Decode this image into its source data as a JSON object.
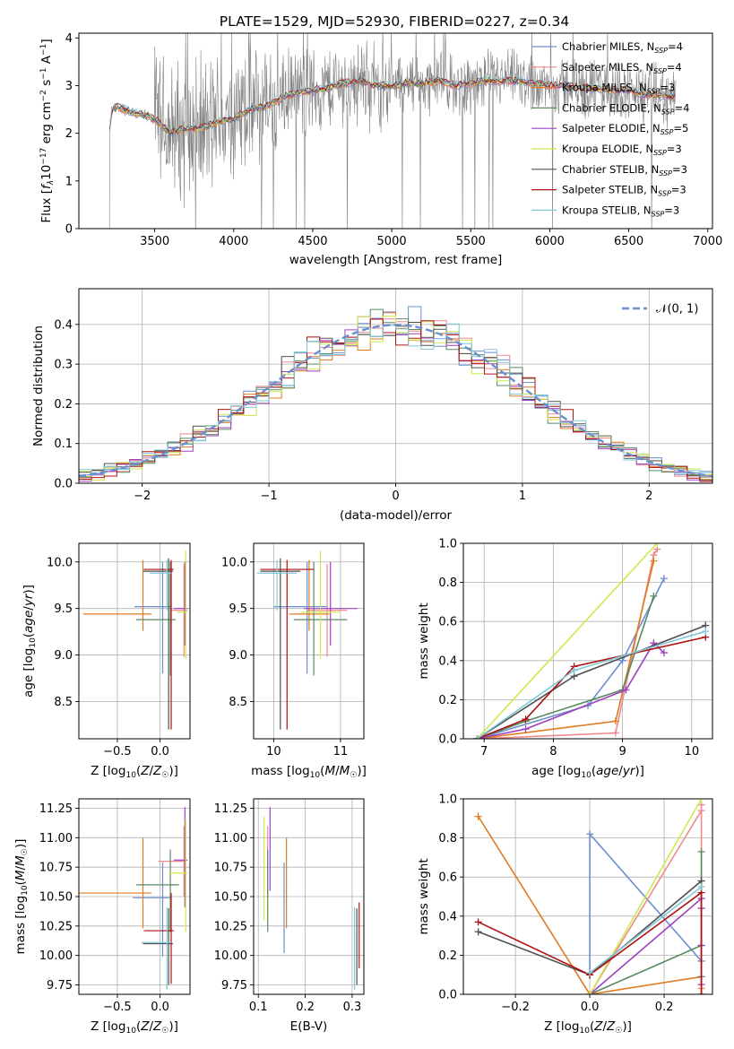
{
  "figure": {
    "title": "PLATE=1529, MJD=52930, FIBERID=0227, z=0.34"
  },
  "colors": {
    "data_spectrum": "#808080",
    "grid": "#b0b0b0",
    "gaussian": "#6a8fd0"
  },
  "model_names": [
    "Chabrier MILES",
    "Salpeter MILES",
    "Kroupa MILES",
    "Chabrier ELODIE",
    "Salpeter ELODIE",
    "Kroupa ELODIE",
    "Chabrier STELIB",
    "Salpeter STELIB",
    "Kroupa STELIB"
  ],
  "model_colors": [
    "#6a8fd0",
    "#f08a8a",
    "#e07b20",
    "#5a8a60",
    "#a040c0",
    "#d0e84a",
    "#505050",
    "#b01010",
    "#80c8d8"
  ],
  "legend": [
    {
      "label": "Chabrier MILES",
      "n": "4"
    },
    {
      "label": "Salpeter MILES",
      "n": "4"
    },
    {
      "label": "Kroupa MILES",
      "n": "3"
    },
    {
      "label": "Chabrier ELODIE",
      "n": "4"
    },
    {
      "label": "Salpeter ELODIE",
      "n": "5"
    },
    {
      "label": "Kroupa ELODIE",
      "n": "3"
    },
    {
      "label": "Chabrier STELIB",
      "n": "3"
    },
    {
      "label": "Salpeter STELIB",
      "n": "3"
    },
    {
      "label": "Kroupa STELIB",
      "n": "3"
    }
  ],
  "chart_data": [
    {
      "id": "spectrum",
      "type": "line",
      "xlabel": "wavelength [Angstrom, rest frame]",
      "ylabel_parts": [
        "Flux [",
        "f",
        "λ",
        "10",
        "−17",
        " erg cm",
        "−2",
        " s",
        "−1",
        " A",
        "−1",
        "]"
      ],
      "xlim": [
        3020,
        7030
      ],
      "ylim": [
        0,
        4.1
      ],
      "xticks": [
        3500,
        4000,
        4500,
        5000,
        5500,
        6000,
        6500,
        7000
      ],
      "yticks": [
        0,
        1,
        2,
        3,
        4
      ],
      "continuum_x": [
        3210,
        3230,
        3260,
        3350,
        3450,
        3500,
        3600,
        3700,
        3800,
        3900,
        4000,
        4100,
        4200,
        4300,
        4400,
        4500,
        4600,
        4700,
        4800,
        4900,
        5000,
        5100,
        5200,
        5300,
        5400,
        5500,
        5600,
        5700,
        5800,
        5900,
        6000,
        6100,
        6200,
        6300,
        6400,
        6500,
        6600,
        6700,
        6800
      ],
      "continuum_y": [
        2.0,
        2.5,
        2.55,
        2.45,
        2.35,
        2.3,
        2.0,
        2.1,
        2.1,
        2.25,
        2.3,
        2.5,
        2.55,
        2.75,
        2.85,
        2.9,
        2.95,
        3.05,
        3.1,
        3.0,
        3.0,
        3.05,
        3.05,
        3.1,
        3.0,
        3.05,
        3.1,
        3.1,
        3.1,
        3.05,
        3.0,
        3.0,
        2.95,
        2.95,
        2.9,
        2.9,
        2.8,
        2.8,
        2.75
      ],
      "data_x_range": [
        3210,
        6800
      ],
      "legend_unit_prefix": "N",
      "legend_unit_sub": "SSP"
    },
    {
      "id": "residuals",
      "type": "line",
      "xlabel": "(data-model)/error",
      "ylabel": "Normed distribution",
      "xlim": [
        -2.5,
        2.5
      ],
      "ylim": [
        0,
        0.49
      ],
      "xticks": [
        -2,
        -1,
        0,
        1,
        2
      ],
      "xtick_labels": [
        "−2",
        "−1",
        "0",
        "1",
        "2"
      ],
      "yticks": [
        0.0,
        0.1,
        0.2,
        0.3,
        0.4
      ],
      "ytick_labels": [
        "0.0",
        "0.1",
        "0.2",
        "0.3",
        "0.4"
      ],
      "bin_width": 0.1,
      "gaussian_label": "𝒩(0, 1)"
    },
    {
      "id": "age-vs-Z",
      "type": "scatter",
      "xlabel": "Z [log10(Z/Z☉)]",
      "ylabel": "age  [log10(age/yr)]",
      "xlim": [
        -0.95,
        0.35
      ],
      "ylim": [
        8.1,
        10.2
      ],
      "xticks": [
        -0.5,
        0.0
      ],
      "xtick_labels": [
        "−0.5",
        "0.0"
      ],
      "yticks": [
        8.5,
        9.0,
        9.5,
        10.0
      ],
      "ytick_labels": [
        "8.5",
        "9.0",
        "9.5",
        "10.0"
      ],
      "bars": [
        {
          "m": 0,
          "x": 0.03,
          "xe": [
            0.33,
            0.1
          ],
          "y": 9.52,
          "ye": [
            0.72,
            0.48
          ]
        },
        {
          "m": 1,
          "x": 0.28,
          "xe": [
            0.15,
            0.04
          ],
          "y": 9.48,
          "ye": [
            0.5,
            0.5
          ]
        },
        {
          "m": 2,
          "x": -0.2,
          "xe": [
            0.7,
            0.1
          ],
          "y": 9.44,
          "ye": [
            0.18,
            0.58
          ]
        },
        {
          "m": 3,
          "x": 0.12,
          "xe": [
            0.4,
            0.06
          ],
          "y": 9.38,
          "ye": [
            0.6,
            0.62
          ]
        },
        {
          "m": 4,
          "x": 0.29,
          "xe": [
            0.13,
            0.03
          ],
          "y": 9.5,
          "ye": [
            0.4,
            0.5
          ]
        },
        {
          "m": 5,
          "x": 0.3,
          "xe": [
            0.1,
            0.02
          ],
          "y": 9.46,
          "ye": [
            0.5,
            0.66
          ]
        },
        {
          "m": 6,
          "x": 0.1,
          "xe": [
            0.3,
            0.05
          ],
          "y": 9.9,
          "ye": [
            1.7,
            0.14
          ]
        },
        {
          "m": 7,
          "x": 0.13,
          "xe": [
            0.32,
            0.03
          ],
          "y": 9.92,
          "ye": [
            1.72,
            0.1
          ]
        },
        {
          "m": 8,
          "x": 0.08,
          "xe": [
            0.2,
            0.05
          ],
          "y": 9.88,
          "ye": [
            0.4,
            0.14
          ]
        }
      ]
    },
    {
      "id": "age-vs-mass",
      "type": "scatter",
      "xlabel": "mass [log10(M/M☉)]",
      "xlim": [
        9.7,
        11.35
      ],
      "ylim": [
        8.1,
        10.2
      ],
      "xticks": [
        10,
        11
      ],
      "xtick_labels": [
        "10",
        "11"
      ],
      "yticks": [
        8.5,
        9.0,
        9.5,
        10.0
      ],
      "ytick_labels": [
        "8.5",
        "9.0",
        "9.5",
        "10.0"
      ],
      "bars": [
        {
          "m": 0,
          "x": 10.5,
          "xe": [
            0.5,
            0.3
          ],
          "y": 9.52,
          "ye": [
            0.72,
            0.48
          ]
        },
        {
          "m": 1,
          "x": 10.8,
          "xe": [
            0.3,
            0.3
          ],
          "y": 9.48,
          "ye": [
            0.5,
            0.5
          ]
        },
        {
          "m": 2,
          "x": 10.53,
          "xe": [
            0.3,
            0.3
          ],
          "y": 9.44,
          "ye": [
            0.18,
            0.58
          ]
        },
        {
          "m": 3,
          "x": 10.6,
          "xe": [
            0.3,
            0.5
          ],
          "y": 9.38,
          "ye": [
            0.6,
            0.62
          ]
        },
        {
          "m": 4,
          "x": 10.85,
          "xe": [
            0.4,
            0.4
          ],
          "y": 9.5,
          "ye": [
            0.4,
            0.5
          ]
        },
        {
          "m": 5,
          "x": 10.7,
          "xe": [
            0.3,
            0.3
          ],
          "y": 9.46,
          "ye": [
            0.5,
            0.66
          ]
        },
        {
          "m": 6,
          "x": 10.1,
          "xe": [
            0.3,
            0.3
          ],
          "y": 9.9,
          "ye": [
            1.7,
            0.14
          ]
        },
        {
          "m": 7,
          "x": 10.2,
          "xe": [
            0.4,
            0.4
          ],
          "y": 9.92,
          "ye": [
            1.72,
            0.1
          ]
        },
        {
          "m": 8,
          "x": 10.05,
          "xe": [
            0.3,
            0.3
          ],
          "y": 9.88,
          "ye": [
            0.4,
            0.14
          ]
        }
      ]
    },
    {
      "id": "mass-weight-vs-age",
      "type": "line",
      "xlabel": "age  [log10(age/yr)]",
      "ylabel": "mass weight",
      "xlim": [
        6.7,
        10.3
      ],
      "ylim": [
        0,
        1
      ],
      "xticks": [
        7,
        8,
        9,
        10
      ],
      "xtick_labels": [
        "7",
        "8",
        "9",
        "10"
      ],
      "yticks": [
        0.0,
        0.2,
        0.4,
        0.6,
        0.8,
        1.0
      ],
      "ytick_labels": [
        "0.0",
        "0.2",
        "0.4",
        "0.6",
        "0.8",
        "1.0"
      ],
      "series": [
        {
          "m": 0,
          "x": [
            6.9,
            8.5,
            9.0,
            9.6
          ],
          "y": [
            0.0,
            0.17,
            0.4,
            0.82
          ]
        },
        {
          "m": 1,
          "x": [
            6.9,
            8.9,
            9.45,
            9.5
          ],
          "y": [
            0.0,
            0.03,
            0.94,
            0.97
          ]
        },
        {
          "m": 2,
          "x": [
            6.9,
            8.9,
            9.45
          ],
          "y": [
            0.0,
            0.09,
            0.91
          ]
        },
        {
          "m": 3,
          "x": [
            6.9,
            7.6,
            9.0,
            9.45
          ],
          "y": [
            0.0,
            0.09,
            0.25,
            0.73
          ]
        },
        {
          "m": 4,
          "x": [
            6.9,
            7.6,
            9.05,
            9.45,
            9.6
          ],
          "y": [
            0.0,
            0.05,
            0.25,
            0.49,
            0.44
          ]
        },
        {
          "m": 5,
          "x": [
            6.9,
            9.5
          ],
          "y": [
            0.0,
            1.0
          ]
        },
        {
          "m": 6,
          "x": [
            6.9,
            8.3,
            10.2
          ],
          "y": [
            0.0,
            0.32,
            0.58
          ]
        },
        {
          "m": 7,
          "x": [
            6.9,
            7.6,
            8.3,
            10.2
          ],
          "y": [
            0.0,
            0.1,
            0.37,
            0.52
          ]
        },
        {
          "m": 8,
          "x": [
            6.9,
            8.3,
            10.2
          ],
          "y": [
            0.0,
            0.35,
            0.55
          ]
        }
      ]
    },
    {
      "id": "mass-vs-Z",
      "type": "scatter",
      "xlabel": "Z [log10(Z/Z☉)]",
      "ylabel": "mass [log10(M/M☉)]",
      "xlim": [
        -0.95,
        0.35
      ],
      "ylim": [
        9.67,
        11.33
      ],
      "xticks": [
        -0.5,
        0.0
      ],
      "xtick_labels": [
        "−0.5",
        "0.0"
      ],
      "yticks": [
        9.75,
        10.0,
        10.25,
        10.5,
        10.75,
        11.0,
        11.25
      ],
      "ytick_labels": [
        "9.75",
        "10.00",
        "10.25",
        "10.50",
        "10.75",
        "11.00",
        "11.25"
      ],
      "bars": [
        {
          "m": 0,
          "x": 0.03,
          "xe": [
            0.35,
            0.1
          ],
          "y": 10.49,
          "ye": [
            0.5,
            0.3
          ]
        },
        {
          "m": 1,
          "x": 0.28,
          "xe": [
            0.3,
            0.03
          ],
          "y": 10.8,
          "ye": [
            0.3,
            0.3
          ]
        },
        {
          "m": 2,
          "x": -0.2,
          "xe": [
            0.75,
            0.1
          ],
          "y": 10.53,
          "ye": [
            0.3,
            0.47
          ]
        },
        {
          "m": 3,
          "x": 0.12,
          "xe": [
            0.4,
            0.1
          ],
          "y": 10.6,
          "ye": [
            0.4,
            0.3
          ]
        },
        {
          "m": 4,
          "x": 0.29,
          "xe": [
            0.13,
            0.03
          ],
          "y": 10.81,
          "ye": [
            0.4,
            0.45
          ]
        },
        {
          "m": 5,
          "x": 0.3,
          "xe": [
            0.2,
            0.02
          ],
          "y": 10.7,
          "ye": [
            0.5,
            0.46
          ]
        },
        {
          "m": 6,
          "x": 0.1,
          "xe": [
            0.3,
            0.05
          ],
          "y": 10.1,
          "ye": [
            0.35,
            0.3
          ]
        },
        {
          "m": 7,
          "x": 0.13,
          "xe": [
            0.32,
            0.03
          ],
          "y": 10.21,
          "ye": [
            0.45,
            0.32
          ]
        },
        {
          "m": 8,
          "x": 0.08,
          "xe": [
            0.3,
            0.05
          ],
          "y": 10.11,
          "ye": [
            0.4,
            0.3
          ]
        }
      ]
    },
    {
      "id": "mass-vs-EBV",
      "type": "scatter",
      "xlabel": "E(B-V)",
      "xlim": [
        0.09,
        0.325
      ],
      "ylim": [
        9.67,
        11.33
      ],
      "xticks": [
        0.1,
        0.2,
        0.3
      ],
      "xtick_labels": [
        "0.1",
        "0.2",
        "0.3"
      ],
      "yticks": [
        9.75,
        10.0,
        10.25,
        10.5,
        10.75,
        11.0,
        11.25
      ],
      "ytick_labels": [
        "9.75",
        "10.00",
        "10.25",
        "10.50",
        "10.75",
        "11.00",
        "11.25"
      ],
      "bars": [
        {
          "m": 0,
          "x": 0.155,
          "xe": [
            0,
            0
          ],
          "y": 10.49,
          "ye": [
            0.47,
            0.3
          ]
        },
        {
          "m": 1,
          "x": 0.12,
          "xe": [
            0,
            0
          ],
          "y": 10.8,
          "ye": [
            0.3,
            0.3
          ]
        },
        {
          "m": 2,
          "x": 0.16,
          "xe": [
            0,
            0
          ],
          "y": 10.53,
          "ye": [
            0.3,
            0.47
          ]
        },
        {
          "m": 3,
          "x": 0.12,
          "xe": [
            0,
            0
          ],
          "y": 10.6,
          "ye": [
            0.4,
            0.3
          ]
        },
        {
          "m": 4,
          "x": 0.125,
          "xe": [
            0,
            0
          ],
          "y": 10.81,
          "ye": [
            0.26,
            0.45
          ]
        },
        {
          "m": 5,
          "x": 0.112,
          "xe": [
            0,
            0
          ],
          "y": 10.7,
          "ye": [
            0.4,
            0.48
          ]
        },
        {
          "m": 6,
          "x": 0.31,
          "xe": [
            0,
            0
          ],
          "y": 10.1,
          "ye": [
            0.35,
            0.3
          ]
        },
        {
          "m": 7,
          "x": 0.315,
          "xe": [
            0,
            0
          ],
          "y": 10.21,
          "ye": [
            0.32,
            0.24
          ]
        },
        {
          "m": 8,
          "x": 0.305,
          "xe": [
            0,
            0
          ],
          "y": 10.11,
          "ye": [
            0.4,
            0.3
          ]
        }
      ]
    },
    {
      "id": "mass-weight-vs-Z",
      "type": "line",
      "xlabel": "Z [log10(Z/Z☉)]",
      "ylabel": "mass weight",
      "xlim": [
        -0.34,
        0.33
      ],
      "ylim": [
        0,
        1
      ],
      "xticks": [
        -0.2,
        0.0,
        0.2
      ],
      "xtick_labels": [
        "−0.2",
        "0.0",
        "0.2"
      ],
      "yticks": [
        0.0,
        0.2,
        0.4,
        0.6,
        0.8,
        1.0
      ],
      "ytick_labels": [
        "0.0",
        "0.2",
        "0.4",
        "0.6",
        "0.8",
        "1.0"
      ],
      "series": [
        {
          "m": 0,
          "x": [
            0.0,
            0.0,
            0.3,
            0.3
          ],
          "y": [
            0.1,
            0.82,
            0.17,
            0.25
          ]
        },
        {
          "m": 1,
          "x": [
            0.0,
            0.3,
            0.3,
            0.3
          ],
          "y": [
            0.0,
            0.94,
            0.97,
            0.03
          ]
        },
        {
          "m": 2,
          "x": [
            -0.3,
            0.0,
            0.3,
            0.3
          ],
          "y": [
            0.91,
            0.0,
            0.09,
            0.0
          ]
        },
        {
          "m": 3,
          "x": [
            0.0,
            0.3,
            0.3,
            0.3
          ],
          "y": [
            0.0,
            0.25,
            0.73,
            0.09
          ]
        },
        {
          "m": 4,
          "x": [
            0.0,
            0.3,
            0.3,
            0.3,
            0.3
          ],
          "y": [
            0.0,
            0.49,
            0.44,
            0.05,
            0.25
          ]
        },
        {
          "m": 5,
          "x": [
            0.0,
            0.3
          ],
          "y": [
            0.0,
            1.0
          ]
        },
        {
          "m": 6,
          "x": [
            -0.3,
            0.0,
            0.3
          ],
          "y": [
            0.32,
            0.1,
            0.58
          ]
        },
        {
          "m": 7,
          "x": [
            -0.3,
            0.0,
            0.3,
            0.3
          ],
          "y": [
            0.37,
            0.1,
            0.52,
            0.0
          ]
        },
        {
          "m": 8,
          "x": [
            0.0,
            0.3
          ],
          "y": [
            0.11,
            0.55
          ]
        }
      ]
    }
  ]
}
